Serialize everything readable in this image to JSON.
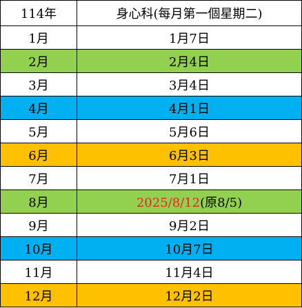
{
  "header": {
    "year": "114年",
    "title": "身心科(每月第一個星期二)"
  },
  "rows": [
    {
      "month": "1月",
      "date": "1月7日",
      "bg": "#ffffff"
    },
    {
      "month": "2月",
      "date": "2月4日",
      "bg": "#92d050"
    },
    {
      "month": "3月",
      "date": "3月4日",
      "bg": "#ffffff"
    },
    {
      "month": "4月",
      "date": "4月1日",
      "bg": "#00b0f0"
    },
    {
      "month": "5月",
      "date": "5月6日",
      "bg": "#ffffff"
    },
    {
      "month": "6月",
      "date": "6月3日",
      "bg": "#ffc000"
    },
    {
      "month": "7月",
      "date": "7月1日",
      "bg": "#ffffff"
    },
    {
      "month": "8月",
      "date": "2025/8/12",
      "note": "(原8/5)",
      "date_color": "#e8231e",
      "bg": "#92d050"
    },
    {
      "month": "9月",
      "date": "9月2日",
      "bg": "#ffffff"
    },
    {
      "month": "10月",
      "date": "10月7日",
      "bg": "#00b0f0"
    },
    {
      "month": "11月",
      "date": "11月4日",
      "bg": "#ffffff"
    },
    {
      "month": "12月",
      "date": "12月2日",
      "bg": "#ffc000"
    }
  ]
}
